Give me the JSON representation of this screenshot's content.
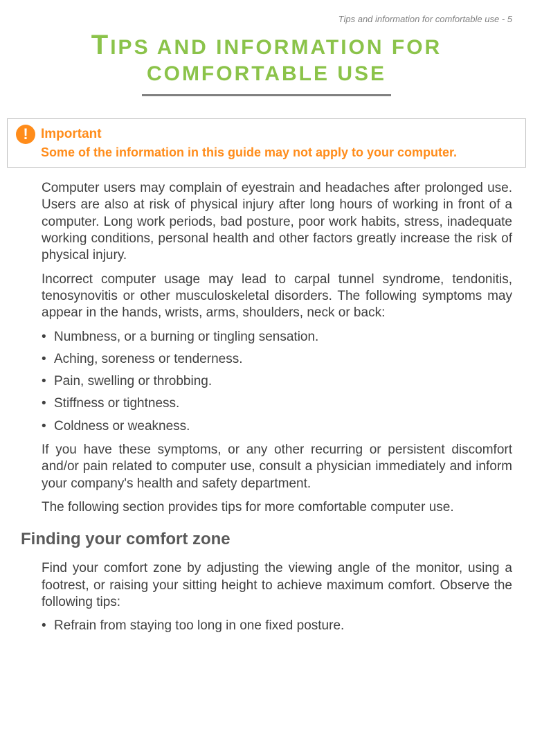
{
  "header": {
    "label": "Tips and information for comfortable use - 5"
  },
  "title": {
    "line1_first_char": "T",
    "line1_rest": "IPS AND INFORMATION FOR",
    "line2": "COMFORTABLE USE",
    "color": "#8bc34a",
    "rule_color": "#808080"
  },
  "important": {
    "label": "Important",
    "text": "Some of the information in this guide may not apply to your computer.",
    "color": "#ff8c1a",
    "icon_mark": "!"
  },
  "paragraphs": {
    "p1": "Computer users may complain of eyestrain and headaches after prolonged use. Users are also at risk of physical injury after long hours of working in front of a computer. Long work periods, bad posture, poor work habits, stress, inadequate working conditions, personal health and other factors greatly increase the risk of physical injury.",
    "p2": "Incorrect computer usage may lead to carpal tunnel syndrome, tendonitis, tenosynovitis or other musculoskeletal disorders. The following symptoms may appear in the hands, wrists, arms, shoulders, neck or back:",
    "p3": "If you have these symptoms, or any other recurring or persistent discomfort and/or pain related to computer use, consult a physician immediately and inform your company's health and safety department.",
    "p4": "The following section provides tips for more comfortable computer use.",
    "p5": "Find your comfort zone by adjusting the viewing angle of the monitor, using a footrest, or raising your sitting height to achieve maximum comfort. Observe the following tips:"
  },
  "symptoms": [
    "Numbness, or a burning or tingling sensation.",
    "Aching, soreness or tenderness.",
    "Pain, swelling or throbbing.",
    "Stiffness or tightness.",
    "Coldness or weakness."
  ],
  "section_heading": "Finding your comfort zone",
  "tips": [
    "Refrain from staying too long in one fixed posture."
  ],
  "colors": {
    "body_text": "#404040",
    "header_text": "#808080",
    "heading_text": "#5a5a5a",
    "background": "#ffffff",
    "border": "#c0c0c0"
  },
  "fonts": {
    "body_size": 19,
    "header_size": 13,
    "title_size": 30,
    "title_big_char": 40,
    "heading_size": 24,
    "important_label_size": 19,
    "important_text_size": 18
  }
}
